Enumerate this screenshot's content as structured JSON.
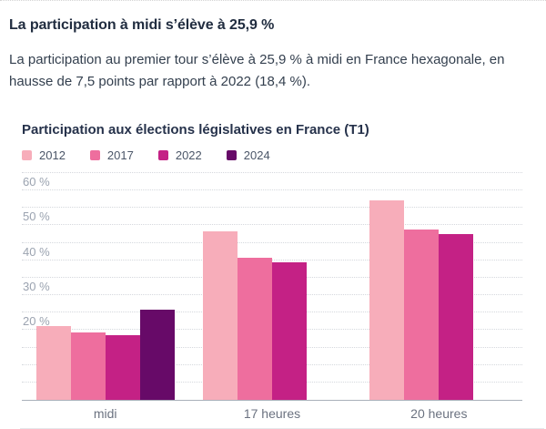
{
  "post": {
    "headline": "La participation à midi s’élève à 25,9 %",
    "body": "La participation au premier tour s’élève à 25,9 % à midi en France hexagonale, en hausse de 7,5 points par rapport à 2022 (18,4 %)."
  },
  "chart_data": {
    "type": "bar",
    "title": "Participation aux élections législatives en France (T1)",
    "categories": [
      "midi",
      "17 heures",
      "20 heures"
    ],
    "series": [
      {
        "name": "2012",
        "color": "#f7adba",
        "values": [
          21.06,
          48.31,
          57.22
        ]
      },
      {
        "name": "2017",
        "color": "#ee6e9e",
        "values": [
          19.24,
          40.75,
          48.7
        ]
      },
      {
        "name": "2022",
        "color": "#c42185",
        "values": [
          18.43,
          39.42,
          47.51
        ]
      },
      {
        "name": "2024",
        "color": "#670a68",
        "values": [
          25.9,
          null,
          null
        ]
      }
    ],
    "ylim": [
      0,
      65
    ],
    "grid_step": 5,
    "grid_style": "dotted horizontal, solid baseline",
    "ytick_values": [
      20,
      30,
      40,
      50,
      60
    ],
    "ytick_labels": [
      "20 %",
      "30 %",
      "40 %",
      "50 %",
      "60 %"
    ],
    "legend_position": "top",
    "colors": {
      "headline_text": "#212d40",
      "body_text": "#333f4e",
      "axis_label": "#9ba3b0",
      "category_label": "#6b7280",
      "gridline": "#d5d8dd",
      "baseline": "#a9b0ba"
    }
  }
}
